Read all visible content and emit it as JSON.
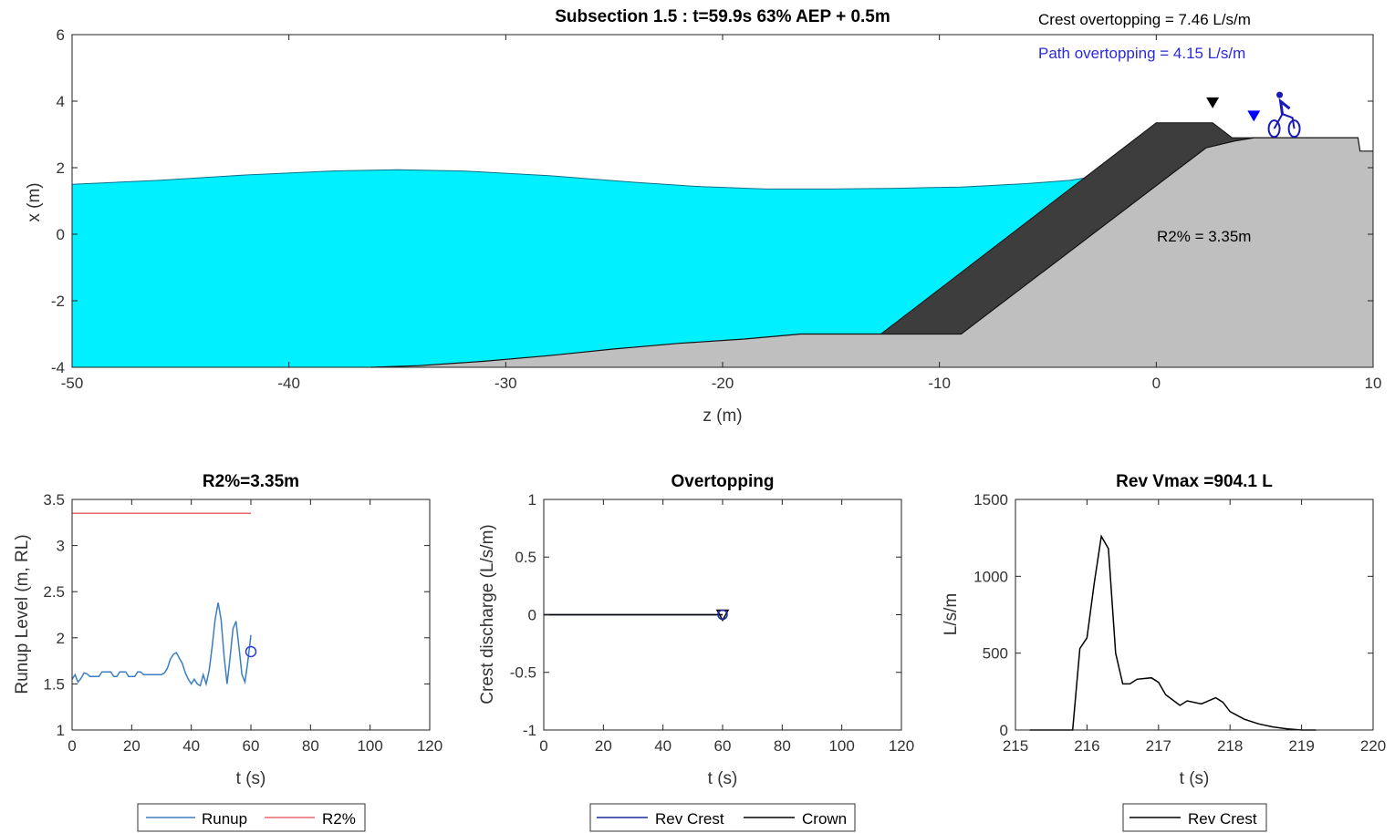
{
  "chart_data": [
    {
      "id": "cross_section",
      "type": "area",
      "title": "Subsection 1.5 : t=59.9s 63% AEP + 0.5m",
      "xlabel": "z (m)",
      "ylabel": "x (m)",
      "xlim": [
        -50,
        10
      ],
      "ylim": [
        -4,
        6
      ],
      "xticks": [
        -50,
        -40,
        -30,
        -20,
        -10,
        0,
        10
      ],
      "yticks": [
        -4,
        -2,
        0,
        2,
        4,
        6
      ],
      "annotations": {
        "crest_overtopping": "Crest overtopping = 7.46 L/s/m",
        "path_overtopping": "Path overtopping = 4.15 L/s/m",
        "r2_label": "R2% = 3.35m"
      },
      "markers": [
        {
          "name": "crest",
          "x": 2.6,
          "y": 3.95,
          "color": "#000000"
        },
        {
          "name": "path",
          "x": 4.5,
          "y": 3.55,
          "color": "#0000ff"
        }
      ],
      "cyclist": {
        "x": 5.9,
        "y": 2.9,
        "color": "#1a1ab8",
        "icon": "cyclist-icon"
      },
      "water_surface": {
        "color": "#00f0ff",
        "x": [
          -50,
          -46,
          -42,
          -38,
          -35,
          -32,
          -28,
          -24,
          -21,
          -18,
          -15,
          -12,
          -9,
          -6,
          -4,
          -3
        ],
        "y": [
          1.5,
          1.62,
          1.78,
          1.9,
          1.94,
          1.9,
          1.76,
          1.56,
          1.43,
          1.36,
          1.36,
          1.38,
          1.42,
          1.52,
          1.62,
          1.72
        ]
      },
      "seabed": {
        "color": "#c0bfc0",
        "x": [
          -36.2,
          -34,
          -31,
          -28,
          -25,
          -22,
          -19,
          -16.4,
          -12.7
        ],
        "y": [
          -4,
          -3.95,
          -3.82,
          -3.65,
          -3.45,
          -3.28,
          -3.15,
          -3.0,
          -3.0
        ]
      },
      "armour": {
        "color": "#3d3d3d",
        "x": [
          -12.7,
          -9.0,
          2.3,
          3.6,
          4.5,
          3.5,
          2.6,
          0.0
        ],
        "y": [
          -3.0,
          -3.0,
          2.6,
          2.8,
          2.9,
          2.9,
          3.35,
          3.35
        ]
      },
      "land": {
        "x": [
          4.5,
          9.3,
          9.4,
          10
        ],
        "y": [
          2.9,
          2.9,
          2.5,
          2.5
        ]
      }
    },
    {
      "id": "runup",
      "type": "line",
      "title": "R2%=3.35m",
      "xlabel": "t (s)",
      "ylabel": "Runup Level (m, RL)",
      "xlim": [
        0,
        120
      ],
      "ylim": [
        1,
        3.5
      ],
      "xticks": [
        0,
        20,
        40,
        60,
        80,
        100,
        120
      ],
      "yticks": [
        1,
        1.5,
        2,
        2.5,
        3,
        3.5
      ],
      "series": [
        {
          "name": "Runup",
          "color": "#3b7fc0",
          "x": [
            0,
            1,
            2,
            3,
            4,
            5,
            6,
            9,
            10,
            13,
            14,
            15,
            16,
            18,
            19,
            21,
            22,
            23,
            24,
            30,
            31,
            32,
            33,
            34,
            35,
            36,
            37,
            38,
            39,
            40,
            41,
            42,
            43,
            44,
            45,
            46,
            47,
            48,
            49,
            50,
            51,
            52,
            53,
            54,
            55,
            56,
            57,
            58,
            59,
            60
          ],
          "y": [
            1.55,
            1.6,
            1.52,
            1.56,
            1.62,
            1.61,
            1.58,
            1.58,
            1.63,
            1.63,
            1.58,
            1.58,
            1.63,
            1.63,
            1.58,
            1.58,
            1.63,
            1.63,
            1.6,
            1.6,
            1.62,
            1.67,
            1.77,
            1.82,
            1.84,
            1.78,
            1.72,
            1.62,
            1.55,
            1.5,
            1.55,
            1.5,
            1.48,
            1.6,
            1.5,
            1.65,
            1.9,
            2.2,
            2.38,
            2.2,
            1.8,
            1.5,
            1.78,
            2.1,
            2.18,
            1.9,
            1.6,
            1.52,
            1.75,
            2.03
          ]
        },
        {
          "name": "R2%",
          "color": "#e8686e",
          "x": [
            0,
            60
          ],
          "y": [
            3.35,
            3.35
          ]
        }
      ],
      "end_marker": {
        "x": 60,
        "y": 1.85,
        "color": "#2a3fd6"
      }
    },
    {
      "id": "overtopping",
      "type": "line",
      "title": "Overtopping",
      "xlabel": "t (s)",
      "ylabel": "Crest discharge (L/s/m)",
      "xlim": [
        0,
        120
      ],
      "ylim": [
        -1,
        1
      ],
      "xticks": [
        0,
        20,
        40,
        60,
        80,
        100,
        120
      ],
      "yticks": [
        -1,
        -0.5,
        0,
        0.5,
        1
      ],
      "series": [
        {
          "name": "Rev Crest",
          "color": "#1a2a9a",
          "x": [
            0,
            60
          ],
          "y": [
            0,
            0
          ]
        },
        {
          "name": "Crown",
          "color": "#000000",
          "x": [
            0,
            60
          ],
          "y": [
            0,
            0
          ]
        }
      ],
      "end_markers": [
        {
          "x": 60,
          "y": 0,
          "shape": "triangle",
          "color": "#000000"
        },
        {
          "x": 60,
          "y": 0,
          "shape": "circle",
          "color": "#1a2a9a"
        }
      ]
    },
    {
      "id": "rev_vmax",
      "type": "line",
      "title": "Rev Vmax =904.1 L",
      "xlabel": "t (s)",
      "ylabel": "L/s/m",
      "xlim": [
        215,
        220
      ],
      "ylim": [
        0,
        1500
      ],
      "xticks": [
        215,
        216,
        217,
        218,
        219,
        220
      ],
      "yticks": [
        0,
        500,
        1000,
        1500
      ],
      "series": [
        {
          "name": "Rev Crest",
          "color": "#000000",
          "x": [
            215.2,
            215.8,
            215.9,
            216.0,
            216.1,
            216.2,
            216.3,
            216.4,
            216.5,
            216.6,
            216.7,
            216.9,
            217.0,
            217.1,
            217.3,
            217.4,
            217.6,
            217.8,
            217.9,
            218.0,
            218.2,
            218.4,
            218.6,
            218.8,
            219.0,
            219.2
          ],
          "y": [
            0,
            0,
            530,
            600,
            950,
            1260,
            1180,
            500,
            300,
            300,
            330,
            340,
            310,
            230,
            160,
            190,
            170,
            210,
            180,
            120,
            70,
            40,
            20,
            8,
            0,
            0
          ]
        }
      ]
    }
  ]
}
